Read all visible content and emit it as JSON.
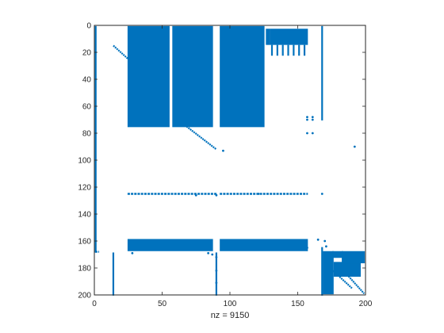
{
  "colors": {
    "marker": "#0072BD",
    "axis": "#262626",
    "background": "#ffffff"
  },
  "chart_data": {
    "type": "spy",
    "description_of_content": "",
    "xlabel": "nz = 9150",
    "xlim": [
      0,
      200
    ],
    "ylim": [
      0,
      200
    ],
    "y_reversed": true,
    "xticks": [
      0,
      50,
      100,
      150,
      200
    ],
    "yticks": [
      0,
      20,
      40,
      60,
      80,
      100,
      120,
      140,
      160,
      180,
      200
    ],
    "grid": false,
    "legend": "none",
    "blocks": [
      {
        "cols": [
          25,
          55
        ],
        "rows": [
          1,
          75
        ]
      },
      {
        "cols": [
          58,
          87
        ],
        "rows": [
          1,
          75
        ]
      },
      {
        "cols": [
          93,
          125
        ],
        "rows": [
          1,
          75
        ]
      },
      {
        "cols": [
          25,
          87
        ],
        "rows": [
          159,
          167
        ]
      },
      {
        "cols": [
          93,
          157
        ],
        "rows": [
          159,
          167
        ]
      },
      {
        "cols": [
          130,
          157
        ],
        "rows": [
          3,
          14
        ]
      },
      {
        "cols": [
          127,
          129
        ],
        "rows": [
          3,
          14
        ]
      },
      {
        "cols": [
          169,
          176
        ],
        "rows": [
          168,
          199
        ]
      },
      {
        "cols": [
          176,
          183
        ],
        "rows": [
          168,
          172
        ]
      },
      {
        "cols": [
          177,
          196
        ],
        "rows": [
          176,
          186
        ]
      },
      {
        "cols": [
          183,
          199
        ],
        "rows": [
          168,
          176
        ]
      }
    ],
    "vertical_lines": [
      {
        "col": 1,
        "rows": [
          1,
          168
        ]
      },
      {
        "col": 14,
        "rows": [
          169,
          200
        ]
      },
      {
        "col": 90,
        "rows": [
          169,
          200
        ]
      },
      {
        "col": 168,
        "rows": [
          1,
          70
        ]
      },
      {
        "col": 168,
        "rows": [
          165,
          200
        ]
      },
      {
        "col": 131,
        "rows": [
          15,
          22
        ]
      },
      {
        "col": 135,
        "rows": [
          15,
          22
        ]
      },
      {
        "col": 139,
        "rows": [
          15,
          22
        ]
      },
      {
        "col": 143,
        "rows": [
          15,
          22
        ]
      },
      {
        "col": 147,
        "rows": [
          15,
          22
        ]
      },
      {
        "col": 151,
        "rows": [
          15,
          22
        ]
      },
      {
        "col": 155,
        "rows": [
          15,
          22
        ]
      }
    ],
    "horizontal_lines": [
      {
        "row": 125,
        "cols": [
          25,
          90
        ]
      },
      {
        "row": 125,
        "cols": [
          93,
          157
        ]
      },
      {
        "row": 168,
        "cols": [
          1,
          3
        ]
      }
    ],
    "diagonals": [
      {
        "from": [
          14,
          15
        ],
        "to": [
          25,
          25
        ]
      },
      {
        "from": [
          68,
          75
        ],
        "to": [
          90,
          92
        ]
      },
      {
        "from": [
          182,
          180
        ],
        "to": [
          199,
          199
        ]
      },
      {
        "from": [
          176,
          182
        ],
        "to": [
          190,
          195
        ]
      }
    ],
    "points": [
      [
        95,
        93
      ],
      [
        192,
        90
      ],
      [
        157,
        80
      ],
      [
        161,
        80
      ],
      [
        157,
        68
      ],
      [
        161,
        68
      ],
      [
        157,
        70
      ],
      [
        161,
        70
      ],
      [
        170,
        160
      ],
      [
        171,
        164
      ],
      [
        26,
        23
      ],
      [
        28,
        169
      ],
      [
        87,
        170
      ],
      [
        84,
        169
      ],
      [
        90,
        172
      ],
      [
        90,
        182
      ],
      [
        90,
        191
      ],
      [
        165,
        159
      ],
      [
        157,
        165
      ],
      [
        75,
        126
      ],
      [
        90,
        126
      ],
      [
        168,
        125
      ],
      [
        121,
        125
      ]
    ]
  }
}
